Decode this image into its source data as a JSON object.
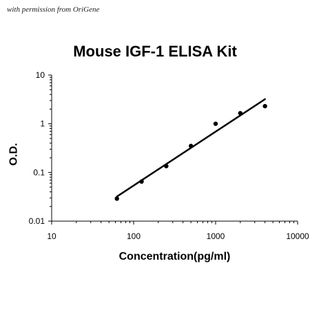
{
  "credit": "with permission from OriGene",
  "chart_data": {
    "type": "scatter",
    "title": "Mouse IGF-1 ELISA Kit",
    "xlabel": "Concentration(pg/ml)",
    "ylabel": "O.D.",
    "xscale": "log",
    "yscale": "log",
    "xlim": [
      10,
      10000
    ],
    "ylim": [
      0.01,
      10
    ],
    "xticks": [
      "10",
      "100",
      "1000",
      "10000"
    ],
    "yticks": [
      "0.01",
      "0.1",
      "1",
      "10"
    ],
    "grid": false,
    "legend": "none",
    "series": [
      {
        "x": [
          62.5,
          125,
          250,
          500,
          1000,
          2000,
          4000
        ],
        "y": [
          0.029,
          0.065,
          0.135,
          0.35,
          1.0,
          1.65,
          2.3
        ]
      }
    ],
    "trendline": {
      "type": "power",
      "x_range": [
        62.5,
        4000
      ],
      "y_range": [
        0.032,
        3.2
      ]
    },
    "colors": {
      "points": "#000000",
      "line": "#000000",
      "axis": "#000000"
    }
  }
}
